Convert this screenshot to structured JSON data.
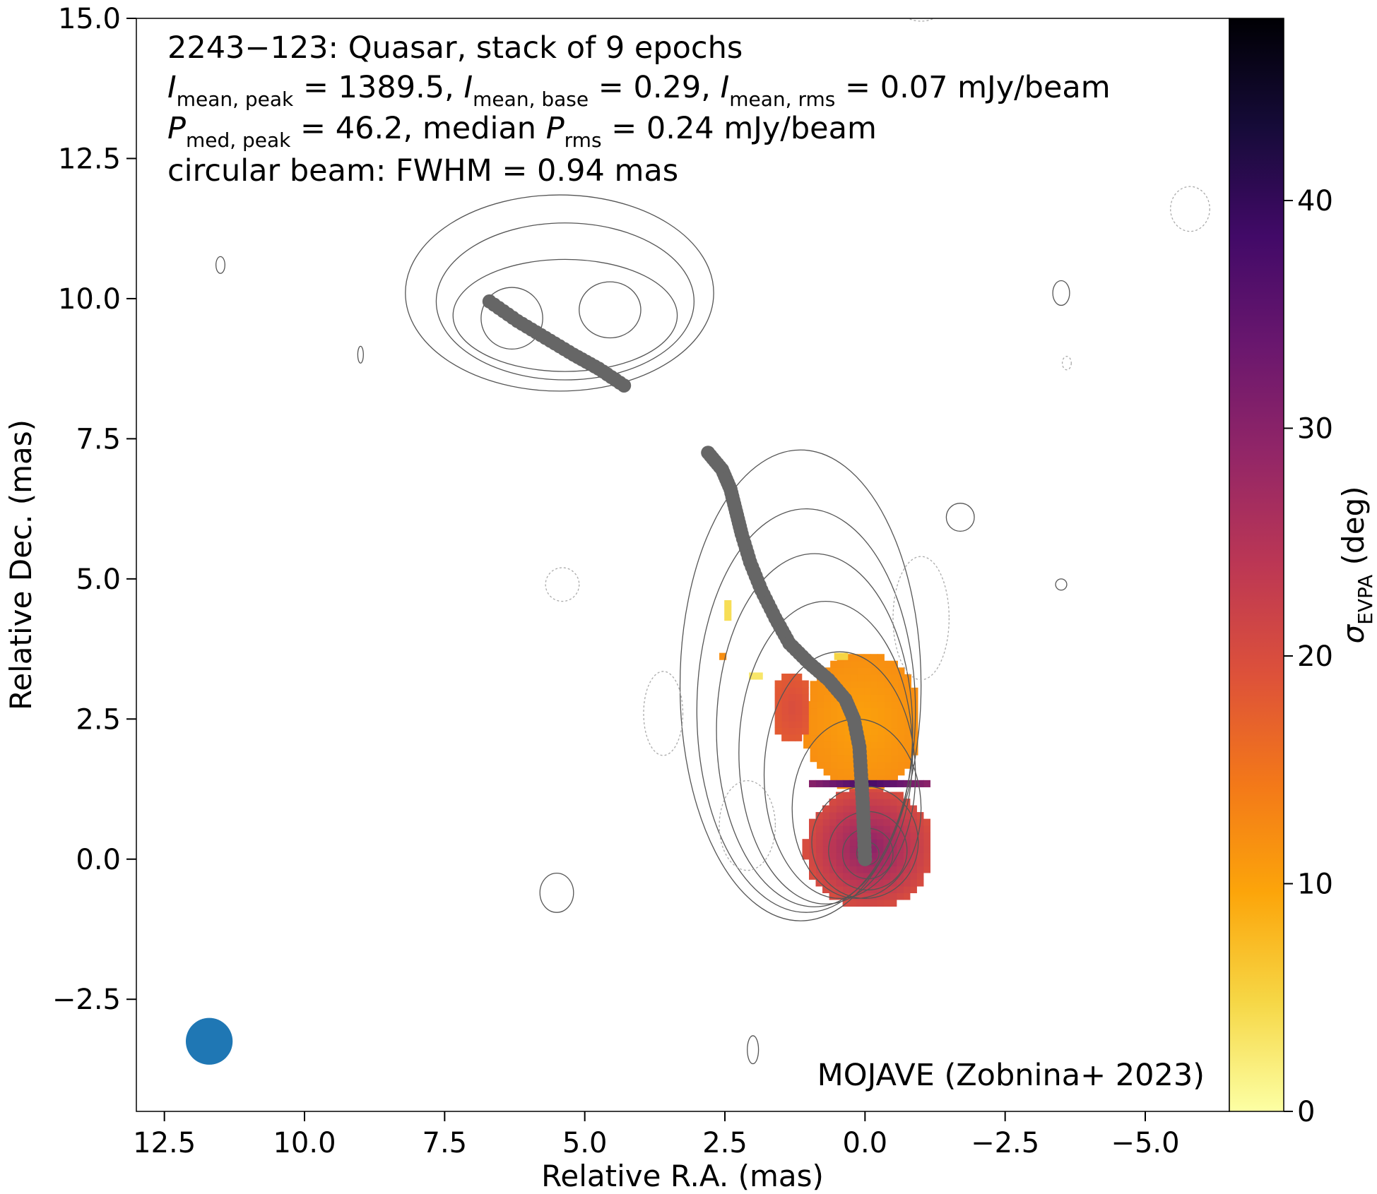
{
  "chart_data": {
    "type": "heatmap",
    "title_lines": [
      "2243−123: Quasar, stack of 9 epochs"
    ],
    "stats": {
      "i_mean_peak": "1389.5",
      "i_mean_base": "0.29",
      "i_mean_rms": "0.07",
      "p_med_peak": "46.2",
      "p_rms": "0.24",
      "unit": "mJy/beam",
      "beam_line": "circular beam: FWHM = 0.94 mas"
    },
    "text": {
      "I": "I",
      "P": "P",
      "sub_mean_peak": "mean, peak",
      "sub_mean_base": "mean, base",
      "sub_mean_rms": "mean, rms",
      "sub_med_peak": "med, peak",
      "sub_rms": "rms",
      "eq": " = ",
      "sep": ", ",
      "median": "median ",
      "sigma": "σ",
      "sigma_sub": "EVPA",
      "deg": " (deg)"
    },
    "credit": "MOJAVE (Zobnina+ 2023)",
    "xlabel": "Relative R.A. (mas)",
    "ylabel": "Relative Dec. (mas)",
    "xlim": [
      13.0,
      -6.5
    ],
    "ylim": [
      -4.5,
      15.0
    ],
    "x_ticks": [
      12.5,
      10.0,
      7.5,
      5.0,
      2.5,
      0.0,
      -2.5,
      -5.0
    ],
    "x_tick_labels": [
      "12.5",
      "10.0",
      "7.5",
      "5.0",
      "2.5",
      "0.0",
      "−2.5",
      "−5.0"
    ],
    "y_ticks": [
      -2.5,
      0.0,
      2.5,
      5.0,
      7.5,
      10.0,
      12.5,
      15.0
    ],
    "y_tick_labels": [
      "−2.5",
      "0.0",
      "2.5",
      "5.0",
      "7.5",
      "10.0",
      "12.5",
      "15.0"
    ],
    "colorbar": {
      "label": "σEVPA (deg)",
      "range": [
        0,
        48
      ],
      "ticks": [
        0,
        10,
        20,
        30,
        40
      ],
      "tick_labels": [
        "0",
        "10",
        "20",
        "30",
        "40"
      ],
      "colormap": "inferno_r",
      "stops": [
        "#fcffa4",
        "#f6d746",
        "#fca50a",
        "#f37819",
        "#dd513a",
        "#bc3754",
        "#932667",
        "#6a176e",
        "#420a68",
        "#160b39",
        "#000004"
      ]
    },
    "colors": {
      "ridge": "#666666",
      "contour": "#555555",
      "contour_negative": "#aaaaaa",
      "beam": "#1f77b4"
    },
    "beam": {
      "x": 11.7,
      "y": -3.25,
      "fwhm": 0.94
    },
    "ridge_lines": [
      {
        "name": "ridge-main",
        "points": [
          [
            0.0,
            0.0
          ],
          [
            0.02,
            0.5
          ],
          [
            0.04,
            1.0
          ],
          [
            0.07,
            1.5
          ],
          [
            0.1,
            2.0
          ],
          [
            0.2,
            2.5
          ],
          [
            0.35,
            2.85
          ],
          [
            0.65,
            3.2
          ],
          [
            1.0,
            3.5
          ],
          [
            1.35,
            3.85
          ],
          [
            1.6,
            4.3
          ],
          [
            1.85,
            4.8
          ],
          [
            2.05,
            5.3
          ],
          [
            2.2,
            5.8
          ],
          [
            2.3,
            6.2
          ],
          [
            2.4,
            6.6
          ],
          [
            2.55,
            6.95
          ],
          [
            2.8,
            7.25
          ]
        ]
      },
      {
        "name": "ridge-upper",
        "points": [
          [
            6.7,
            9.95
          ],
          [
            6.2,
            9.6
          ],
          [
            5.7,
            9.3
          ],
          [
            5.2,
            9.0
          ],
          [
            4.75,
            8.75
          ],
          [
            4.3,
            8.45
          ]
        ]
      }
    ],
    "evpa_regions": [
      {
        "name": "core-blob",
        "cx": -0.07,
        "cy": 0.2,
        "rx": 1.15,
        "ry": 1.1,
        "sigma_center": 30,
        "sigma_edge": 20
      },
      {
        "name": "inner-jet-blob",
        "cx": 0.05,
        "cy": 2.45,
        "rx": 1.05,
        "ry": 1.25,
        "sigma_center": 10,
        "sigma_edge": 12
      },
      {
        "name": "jet-left-patch",
        "cx": 1.3,
        "cy": 2.7,
        "rx": 0.35,
        "ry": 0.65,
        "sigma_center": 20,
        "sigma_edge": 18
      },
      {
        "name": "separator-band",
        "cx": -0.05,
        "cy": 1.35,
        "rx": 1.05,
        "ry": 0.12,
        "sigma_center": 38,
        "sigma_edge": 30
      },
      {
        "name": "yellow-spot-1",
        "cx": 2.45,
        "cy": 4.5,
        "rx": 0.12,
        "ry": 0.18,
        "sigma_center": 4,
        "sigma_edge": 4
      },
      {
        "name": "yellow-spot-2",
        "cx": 1.95,
        "cy": 3.25,
        "rx": 0.18,
        "ry": 0.1,
        "sigma_center": 3,
        "sigma_edge": 3
      },
      {
        "name": "yellow-spot-3",
        "cx": 0.4,
        "cy": 3.6,
        "rx": 0.15,
        "ry": 0.1,
        "sigma_center": 5,
        "sigma_edge": 5
      },
      {
        "name": "orange-spot",
        "cx": 2.5,
        "cy": 3.6,
        "rx": 0.08,
        "ry": 0.1,
        "sigma_center": 12,
        "sigma_edge": 12
      }
    ],
    "contour_groups": [
      {
        "name": "main-jet",
        "cx": -0.05,
        "cy": 0.1,
        "levels": [
          {
            "rx": 0.2,
            "ry": 0.2,
            "dx": 0,
            "dy": 0
          },
          {
            "rx": 0.45,
            "ry": 0.45,
            "dx": 0,
            "dy": 0
          },
          {
            "rx": 0.7,
            "ry": 0.7,
            "dx": 0,
            "dy": 0.05
          },
          {
            "rx": 0.95,
            "ry": 1.0,
            "dx": 0.05,
            "dy": 0.2
          },
          {
            "rx": 1.15,
            "ry": 1.6,
            "dx": 0.2,
            "dy": 0.8
          },
          {
            "rx": 1.35,
            "ry": 2.2,
            "dx": 0.5,
            "dy": 1.4
          },
          {
            "rx": 1.55,
            "ry": 2.7,
            "dx": 0.75,
            "dy": 1.8
          },
          {
            "rx": 1.75,
            "ry": 3.15,
            "dx": 0.95,
            "dy": 2.2
          },
          {
            "rx": 1.95,
            "ry": 3.6,
            "dx": 1.1,
            "dy": 2.55
          },
          {
            "rx": 2.15,
            "ry": 4.2,
            "dx": 1.2,
            "dy": 3.0
          }
        ]
      },
      {
        "name": "upper-component",
        "cx": 5.35,
        "cy": 9.6,
        "levels": [
          {
            "rx": 0.55,
            "ry": 0.55,
            "dx": 0.95,
            "dy": 0.05
          },
          {
            "rx": 0.55,
            "ry": 0.5,
            "dx": -0.8,
            "dy": 0.2
          },
          {
            "rx": 2.0,
            "ry": 1.0,
            "dx": 0.0,
            "dy": 0.1
          },
          {
            "rx": 2.3,
            "ry": 1.4,
            "dx": 0.0,
            "dy": 0.35
          },
          {
            "rx": 2.75,
            "ry": 1.75,
            "dx": 0.1,
            "dy": 0.5
          }
        ]
      },
      {
        "name": "small-islands",
        "cx": 0,
        "cy": 0,
        "levels": [
          {
            "rx": 0.3,
            "ry": 0.35,
            "dx": 5.5,
            "dy": -0.6
          },
          {
            "rx": 0.25,
            "ry": 0.25,
            "dx": -1.7,
            "dy": 6.1
          },
          {
            "rx": 0.15,
            "ry": 0.22,
            "dx": -3.5,
            "dy": 10.1
          },
          {
            "rx": 0.1,
            "ry": 0.1,
            "dx": -3.5,
            "dy": 4.9
          },
          {
            "rx": 0.08,
            "ry": 0.15,
            "dx": 11.5,
            "dy": 10.6
          },
          {
            "rx": 0.05,
            "ry": 0.15,
            "dx": 9.0,
            "dy": 9.0
          },
          {
            "rx": 0.1,
            "ry": 0.25,
            "dx": 2.0,
            "dy": -3.4
          }
        ]
      },
      {
        "name": "negative",
        "cx": 0,
        "cy": 0,
        "levels": [
          {
            "rx": 0.3,
            "ry": 0.3,
            "dx": 5.4,
            "dy": 4.9
          },
          {
            "rx": 0.35,
            "ry": 0.75,
            "dx": 3.6,
            "dy": 2.6
          },
          {
            "rx": 0.5,
            "ry": 0.8,
            "dx": 2.1,
            "dy": 0.6
          },
          {
            "rx": 0.5,
            "ry": 1.1,
            "dx": -1.0,
            "dy": 4.3
          },
          {
            "rx": 0.35,
            "ry": 0.4,
            "dx": -5.8,
            "dy": 11.6
          },
          {
            "rx": 0.3,
            "ry": 0.15,
            "dx": -1.0,
            "dy": 15.1
          },
          {
            "rx": 0.08,
            "ry": 0.12,
            "dx": -3.6,
            "dy": 8.85
          }
        ]
      }
    ]
  }
}
